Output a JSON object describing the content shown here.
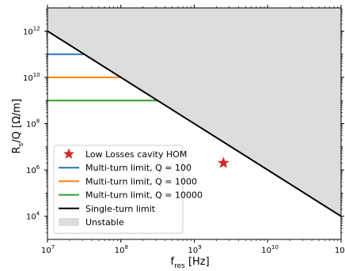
{
  "chart_data": {
    "type": "line",
    "xlabel": {
      "base": "f",
      "sub": "res",
      "rest": " [Hz]"
    },
    "ylabel": {
      "base": "R",
      "sub": "s",
      "rest": "/Q [Ω/m]"
    },
    "x_scale": "log",
    "y_scale": "log",
    "xlim": [
      10000000,
      100000000000
    ],
    "ylim": [
      1000,
      10000000000000
    ],
    "x_ticks": [
      {
        "value": 10000000,
        "base": "10",
        "exp": "7"
      },
      {
        "value": 100000000,
        "base": "10",
        "exp": "8"
      },
      {
        "value": 1000000000,
        "base": "10",
        "exp": "9"
      },
      {
        "value": 10000000000,
        "base": "10",
        "exp": "10"
      },
      {
        "value": 100000000000,
        "base": "10",
        "exp": "11"
      }
    ],
    "y_ticks": [
      {
        "value": 10000,
        "base": "10",
        "exp": "4"
      },
      {
        "value": 1000000,
        "base": "10",
        "exp": "6"
      },
      {
        "value": 100000000,
        "base": "10",
        "exp": "8"
      },
      {
        "value": 10000000000,
        "base": "10",
        "exp": "10"
      },
      {
        "value": 1000000000000,
        "base": "10",
        "exp": "12"
      }
    ],
    "grid": false,
    "legend_position": "lower-left",
    "series": [
      {
        "name": "Low Losses cavity HOM",
        "kind": "scatter",
        "marker": "star",
        "color": "#d62728",
        "points": [
          {
            "x": 2500000000,
            "y": 2000000
          }
        ]
      },
      {
        "name": "Multi-turn limit, Q = 100",
        "kind": "hline",
        "color": "#1f77b4",
        "x": [
          10000000,
          31000000
        ],
        "y": 100000000000
      },
      {
        "name": "Multi-turn limit, Q = 1000",
        "kind": "hline",
        "color": "#ff7f0e",
        "x": [
          10000000,
          100000000
        ],
        "y": 10000000000
      },
      {
        "name": "Multi-turn limit, Q = 10000",
        "kind": "hline",
        "color": "#2ca02c",
        "x": [
          10000000,
          320000000
        ],
        "y": 1000000000
      },
      {
        "name": "Single-turn limit",
        "kind": "line",
        "color": "#000000",
        "points": [
          {
            "x": 10000000,
            "y": 1000000000000
          },
          {
            "x": 100000000000,
            "y": 10000
          }
        ]
      },
      {
        "name": "Unstable",
        "kind": "area",
        "color": "#dcdedb",
        "description_of_region": "above single-turn limit"
      }
    ]
  }
}
